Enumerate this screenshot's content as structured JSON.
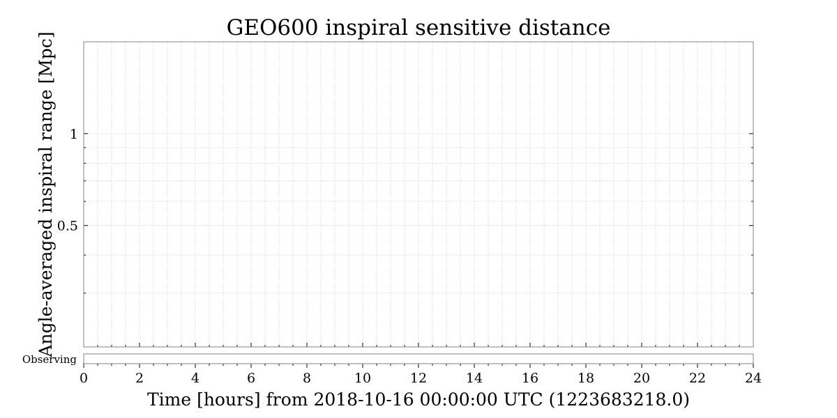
{
  "chart_data": {
    "type": "line",
    "title": "GEO600 inspiral sensitive distance",
    "xlabel": "Time [hours] from 2018-10-16 00:00:00 UTC (1223683218.0)",
    "ylabel": "Angle-averaged inspiral range [Mpc]",
    "x_range": [
      0,
      24
    ],
    "x_ticks": [
      0,
      2,
      4,
      6,
      8,
      10,
      12,
      14,
      16,
      18,
      20,
      22,
      24
    ],
    "x_tick_labels": [
      "0",
      "2",
      "4",
      "6",
      "8",
      "10",
      "12",
      "14",
      "16",
      "18",
      "20",
      "22",
      "24"
    ],
    "x_minor_step": 0.5,
    "y_scale": "log",
    "y_range": [
      0.2,
      2.0
    ],
    "y_major_ticks": [
      0.5,
      1
    ],
    "y_tick_labels": [
      "0.5",
      "1"
    ],
    "y_minor_ticks": [
      0.2,
      0.3,
      0.4,
      0.6,
      0.7,
      0.8,
      0.9,
      2
    ],
    "grid": true,
    "series": [],
    "segments": [
      {
        "label": "Observing",
        "active_intervals": []
      }
    ]
  }
}
